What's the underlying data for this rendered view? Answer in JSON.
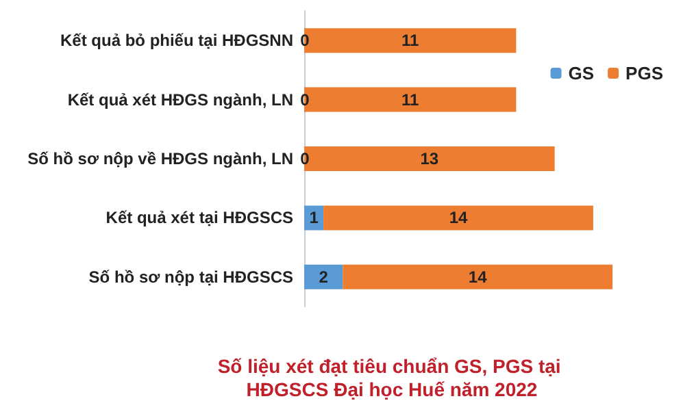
{
  "chart_data": {
    "type": "bar",
    "orientation": "horizontal",
    "stacked": true,
    "data_labels": true,
    "legend": "right",
    "title": "Số liệu xét đạt tiêu chuẩn GS, PGS tại HĐGSCS Đại học Huế năm 2022",
    "categories": [
      "Kết quả bỏ phiếu tại HĐGSNN",
      "Kết quả xét HĐGS ngành, LN",
      "Số hồ sơ nộp về HĐGS ngành, LN",
      "Kết quả xét tại HĐGSCS",
      "Số hồ sơ nộp tại HĐGSCS"
    ],
    "series": [
      {
        "name": "GS",
        "color": "#5b9bd5",
        "values": [
          0,
          0,
          0,
          1,
          2
        ]
      },
      {
        "name": "PGS",
        "color": "#ed7d31",
        "values": [
          11,
          11,
          13,
          14,
          14
        ]
      }
    ]
  }
}
